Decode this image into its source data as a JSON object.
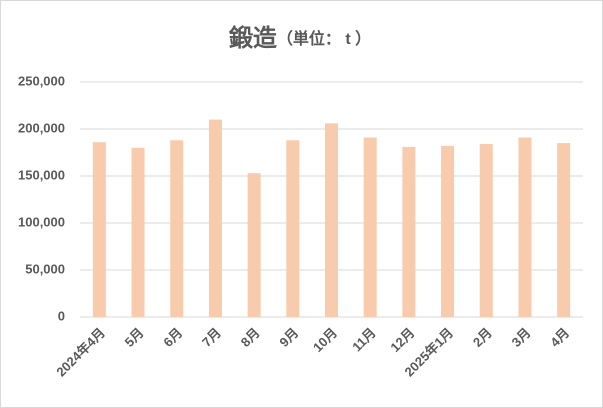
{
  "chart_data": {
    "type": "bar",
    "title": "鍛造",
    "subtitle": "（単位： t ）",
    "categories": [
      "2024年4月",
      "5月",
      "6月",
      "7月",
      "8月",
      "9月",
      "10月",
      "11月",
      "12月",
      "2025年1月",
      "2月",
      "3月",
      "4月"
    ],
    "values": [
      186000,
      180000,
      188000,
      210000,
      153000,
      188000,
      206000,
      191000,
      181000,
      182000,
      184000,
      191000,
      185000
    ],
    "color": "#f8cbad",
    "ylim": [
      0,
      250000
    ],
    "yticks": [
      0,
      {
        "value": 50000,
        "label": "50,000"
      },
      {
        "value": 100000,
        "label": "100,000"
      },
      {
        "value": 150000,
        "label": "150,000"
      },
      {
        "value": 200000,
        "label": "200,000"
      },
      {
        "value": 250000,
        "label": "250,000"
      }
    ],
    "grid": true
  }
}
